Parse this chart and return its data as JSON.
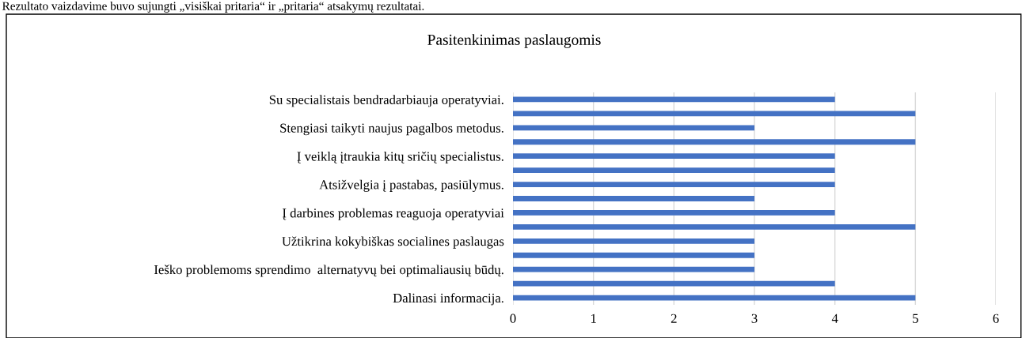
{
  "chart_data": {
    "type": "bar",
    "orientation": "horizontal",
    "title": "Pasitenkinimas paslaugomis",
    "annotations": [
      "Rezultato vaizdavime buvo sujungti „visiškai pritaria“ ir „pritaria“ atsakymų rezultatai."
    ],
    "categories": [
      "Su specialistais bendradarbiauja operatyviai.",
      null,
      "Stengiasi taikyti naujus pagalbos metodus.",
      null,
      "Į veiklą įtraukia kitų sričių specialistus.",
      null,
      "Atsižvelgia į pastabas, pasiūlymus.",
      null,
      "Į darbines problemas reaguoja operatyviai",
      null,
      "Užtikrina kokybiškas socialines paslaugas",
      null,
      "Ieško problemoms sprendimo  alternatyvų bei optimaliausių būdų.",
      null,
      "Dalinasi informacija."
    ],
    "values": [
      4,
      5,
      3,
      5,
      4,
      4,
      4,
      3,
      4,
      5,
      3,
      3,
      3,
      4,
      5
    ],
    "color": "#4472c4",
    "xlim": [
      0,
      6
    ],
    "xticks": [
      0,
      1,
      2,
      3,
      4,
      5,
      6
    ],
    "grid": "x",
    "legend": false
  }
}
